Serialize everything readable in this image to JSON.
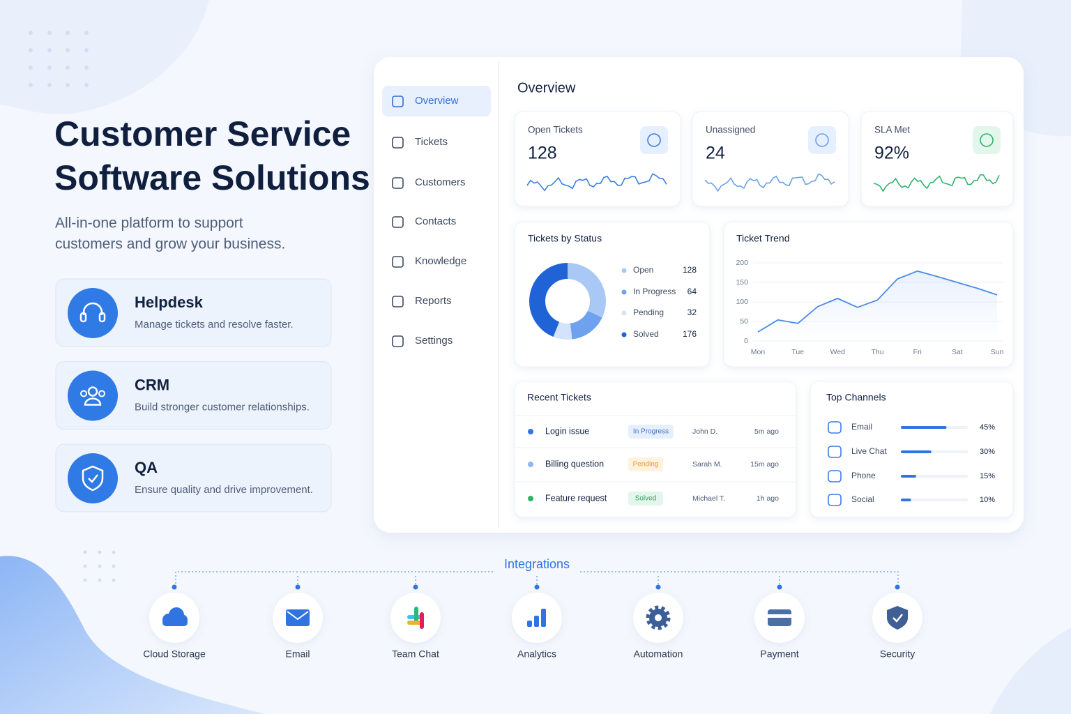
{
  "hero": {
    "title_lines": [
      "Customer Service",
      "Software Solutions"
    ],
    "subtitle_lines": [
      "All-in-one platform to support",
      "customers and grow your business."
    ]
  },
  "features": [
    {
      "title": "Helpdesk",
      "description": "Manage tickets and resolve faster."
    },
    {
      "title": "CRM",
      "description": "Build stronger customer relationships."
    },
    {
      "title": "QA",
      "description": "Ensure quality and drive improvement."
    }
  ],
  "sidebar": {
    "items": [
      "Overview",
      "Tickets",
      "Customers",
      "Contacts",
      "Knowledge",
      "Reports",
      "Settings"
    ],
    "active": 0
  },
  "dashboard": {
    "title": "Overview",
    "kpis": [
      {
        "label": "Open Tickets",
        "value": "128"
      },
      {
        "label": "Unassigned",
        "value": "24"
      },
      {
        "label": "SLA Met",
        "value": "92%"
      }
    ]
  },
  "status_chart": {
    "type": "donut",
    "title": "Tickets by Status",
    "categories": [
      "Open",
      "In Progress",
      "Pending",
      "Solved"
    ],
    "values": [
      128,
      64,
      32,
      176
    ],
    "colors": [
      "#a9c8f6",
      "#6ea1ee",
      "#d3e3fb",
      "#1f63d6"
    ]
  },
  "trend_chart": {
    "type": "line",
    "title": "Ticket Trend",
    "categories": [
      "Mon",
      null,
      "Tue",
      null,
      "Wed",
      null,
      "Thu",
      null,
      "Fri",
      null,
      "Sat",
      null,
      "Sun"
    ],
    "values": [
      23,
      54,
      45,
      88,
      109,
      86,
      105,
      159,
      179,
      165,
      150,
      135,
      118
    ],
    "ylim": [
      0,
      200
    ],
    "yticks": [
      0,
      50,
      100,
      150,
      200
    ],
    "color": "#4a8ae8",
    "grid": true
  },
  "recent_tickets": {
    "title": "Recent Tickets",
    "rows": [
      {
        "subject": "Login issue",
        "status": "In Progress",
        "assignee": "John D.",
        "time": "5m ago"
      },
      {
        "subject": "Billing question",
        "status": "Pending",
        "assignee": "Sarah M.",
        "time": "15m ago"
      },
      {
        "subject": "Feature request",
        "status": "Solved",
        "assignee": "Michael T.",
        "time": "1h ago"
      }
    ]
  },
  "top_channels": {
    "type": "bar",
    "title": "Top Channels",
    "categories": [
      "Email",
      "Live Chat",
      "Phone",
      "Social"
    ],
    "values": [
      45,
      30,
      15,
      10
    ],
    "value_labels": [
      "45%",
      "30%",
      "15%",
      "10%"
    ],
    "xlim": [
      0,
      66
    ],
    "color": "#2f74e0"
  },
  "integrations": {
    "title": "Integrations",
    "items": [
      "Cloud Storage",
      "Email",
      "Team Chat",
      "Analytics",
      "Automation",
      "Payment",
      "Security"
    ]
  }
}
